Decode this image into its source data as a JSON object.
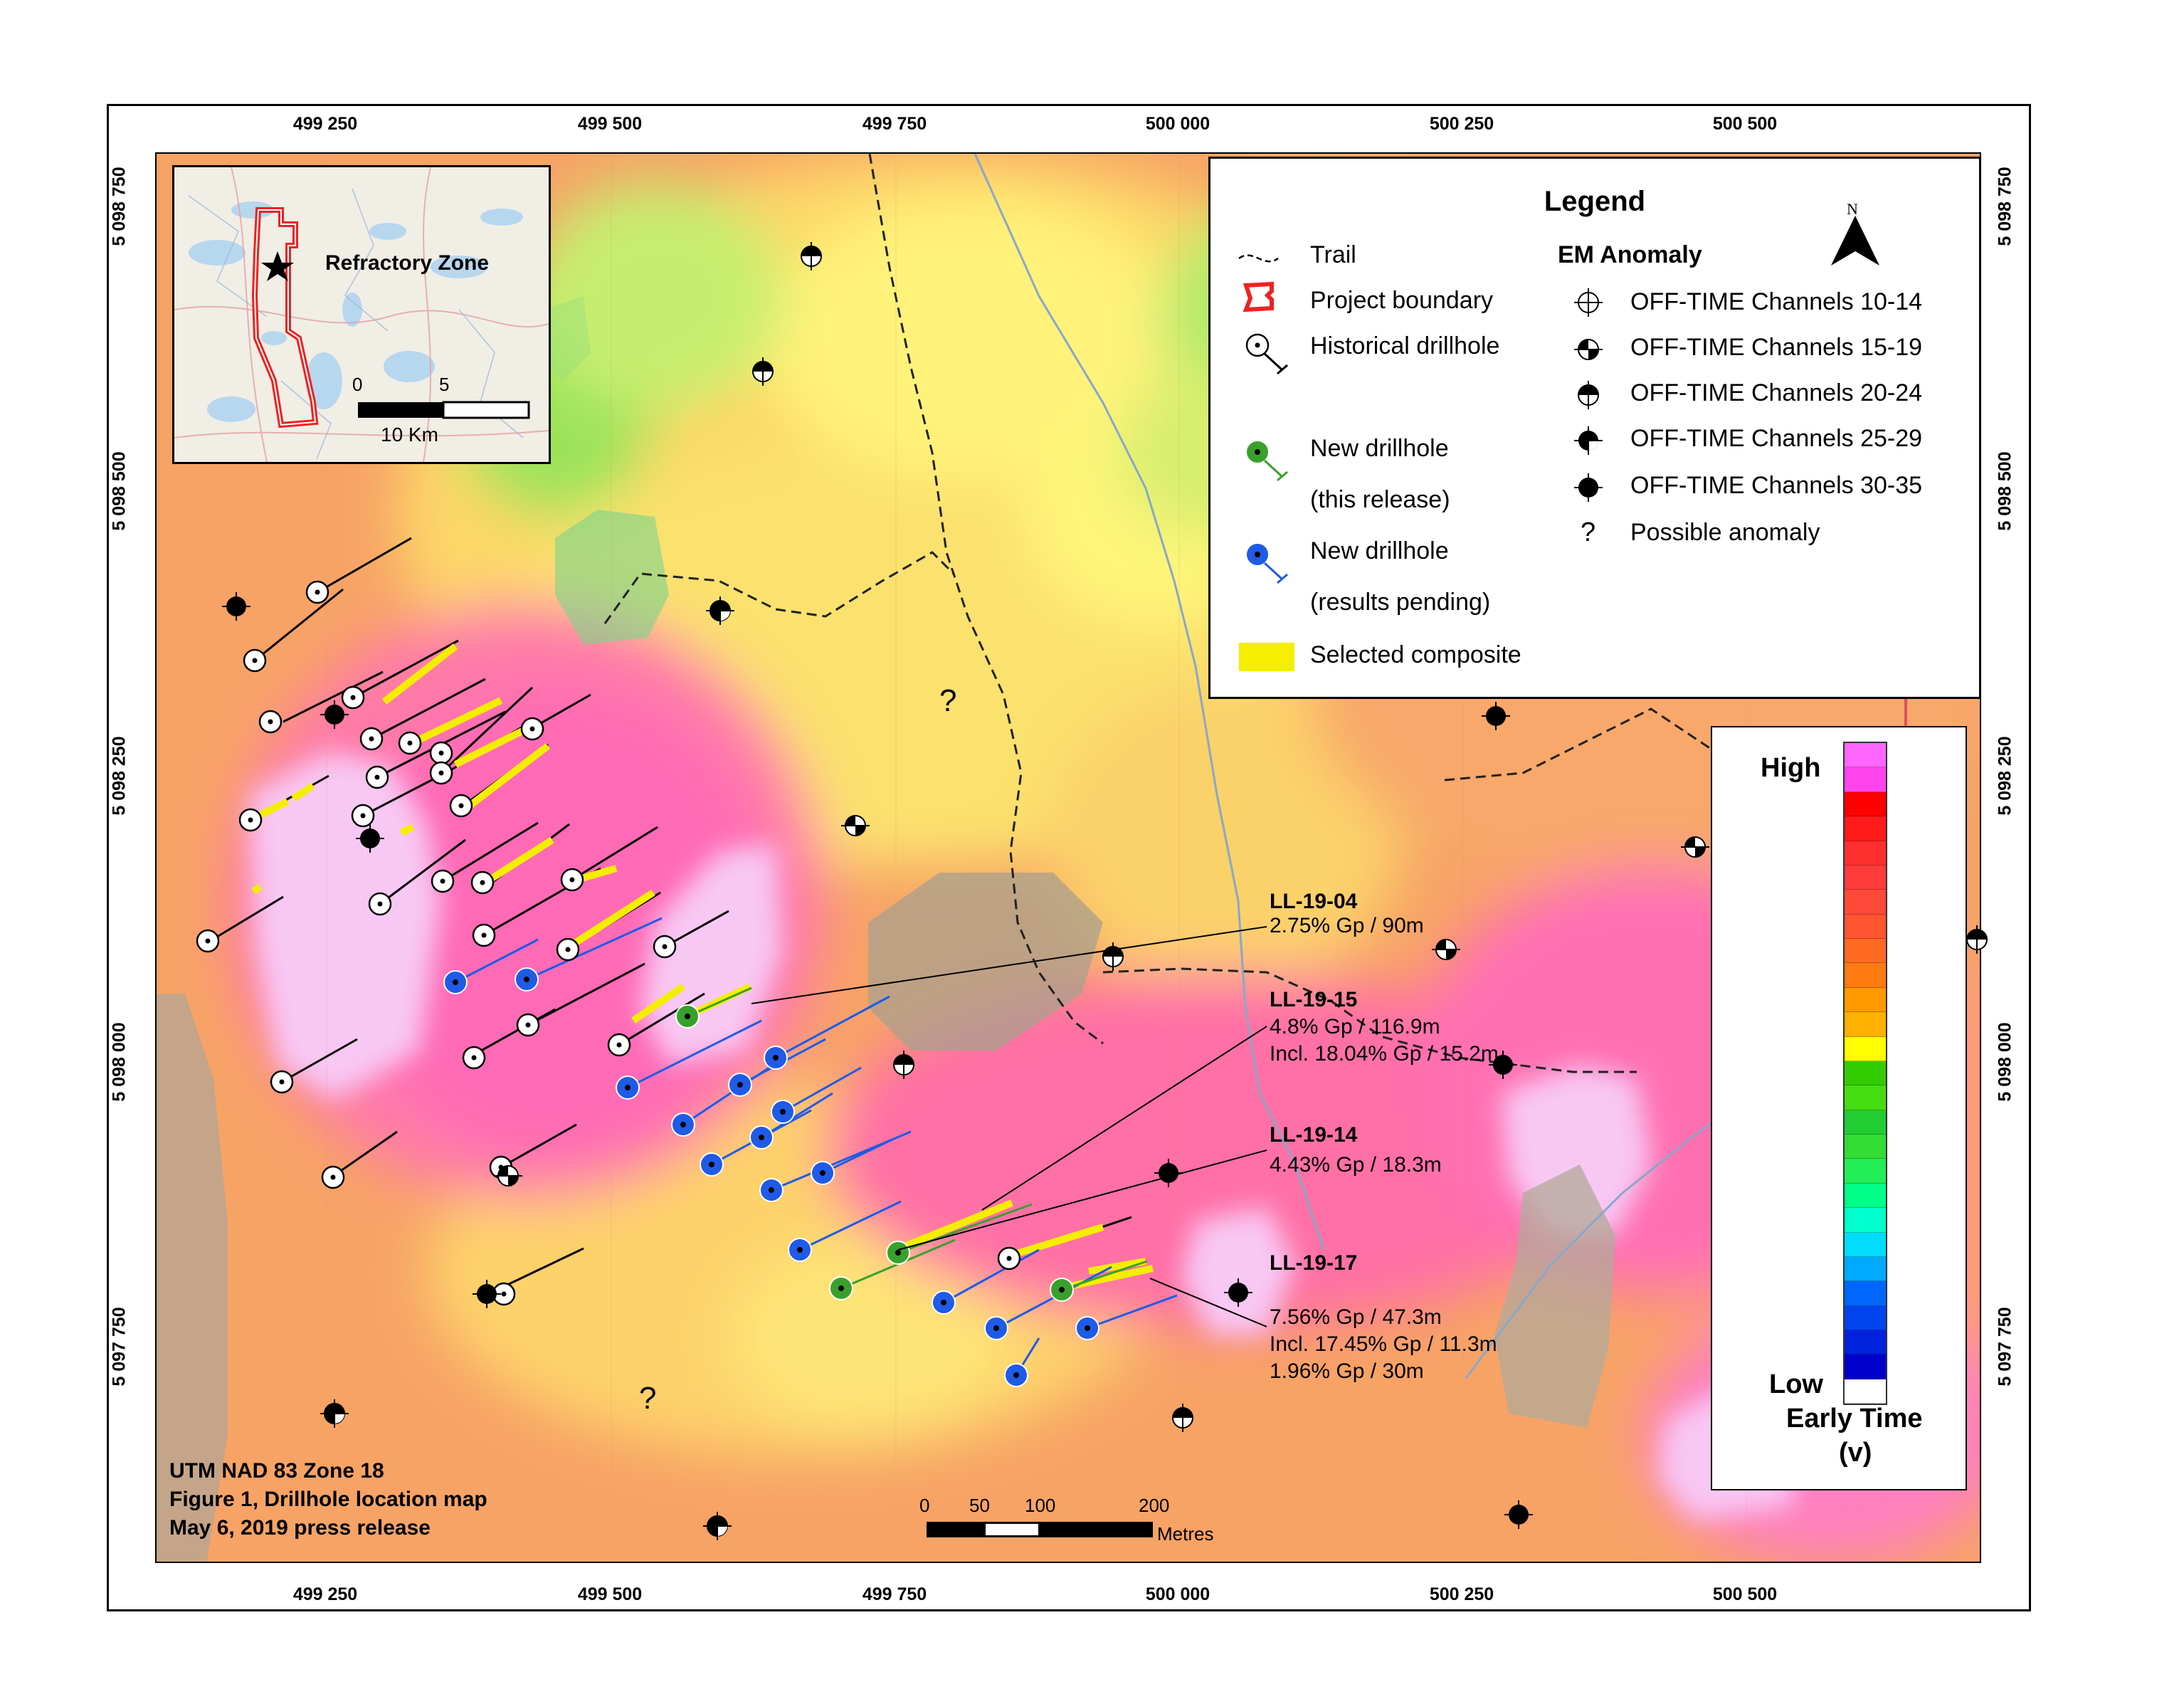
{
  "grid": {
    "x_ticks": [
      "499 250",
      "499 500",
      "499 750",
      "500 000",
      "500 250",
      "500 500"
    ],
    "y_ticks": [
      "5 098 750",
      "5 098 500",
      "5 098 250",
      "5 098 000",
      "5 097 750"
    ]
  },
  "legend": {
    "title": "Legend",
    "items": {
      "trail": "Trail",
      "project_boundary": "Project boundary",
      "historical_drillhole": "Historical drillhole",
      "new_drillhole_release_1": "New drillhole",
      "new_drillhole_release_2": "(this release)",
      "new_drillhole_pending_1": "New drillhole",
      "new_drillhole_pending_2": "(results pending)",
      "selected_composite": "Selected composite"
    },
    "em_heading": "EM Anomaly",
    "em_items": [
      "OFF-TIME Channels 10-14",
      "OFF-TIME Channels 15-19",
      "OFF-TIME Channels 20-24",
      "OFF-TIME Channels 25-29",
      "OFF-TIME Channels 30-35",
      "Possible anomaly"
    ],
    "em_possible_symbol": "?",
    "north": "N"
  },
  "colorbar": {
    "high": "High",
    "low": "Low",
    "title_line1": "Early Time",
    "title_line2": "(v)",
    "colors": [
      "#ff66ff",
      "#ff44ee",
      "#ff0000",
      "#ff1a1a",
      "#ff2e2e",
      "#ff3a3a",
      "#ff4a3a",
      "#ff5530",
      "#ff6a22",
      "#ff7a10",
      "#ff9a00",
      "#ffb000",
      "#ffff00",
      "#33cc00",
      "#44dd11",
      "#22cc33",
      "#33dd33",
      "#22ee55",
      "#00ff88",
      "#00ffcc",
      "#00ddff",
      "#00aaff",
      "#0066ff",
      "#0044ee",
      "#0022dd",
      "#0000cc",
      "#ffffff"
    ]
  },
  "inset": {
    "label": "Refractory Zone",
    "scale_0": "0",
    "scale_5": "5",
    "scale_unit": "10 Km"
  },
  "annotations": [
    {
      "id": "LL-19-04",
      "lines": [
        "2.75% Gp / 90m"
      ]
    },
    {
      "id": "LL-19-15",
      "lines": [
        "4.8% Gp / 116.9m",
        "Incl. 18.04% Gp / 15.2m"
      ]
    },
    {
      "id": "LL-19-14",
      "lines": [
        "4.43% Gp / 18.3m"
      ]
    },
    {
      "id": "LL-19-17",
      "lines": [
        "7.56% Gp / 47.3m",
        "Incl. 17.45% Gp / 11.3m",
        "1.96% Gp / 30m"
      ]
    }
  ],
  "info": {
    "line1": "UTM NAD 83 Zone 18",
    "line2": "Figure 1, Drillhole location map",
    "line3": "May 6, 2019 press release"
  },
  "scalebar": {
    "labels": [
      "0",
      "50",
      "100",
      "200"
    ],
    "unit": "Metres"
  },
  "map_marks": {
    "possible_anomaly": "?"
  }
}
